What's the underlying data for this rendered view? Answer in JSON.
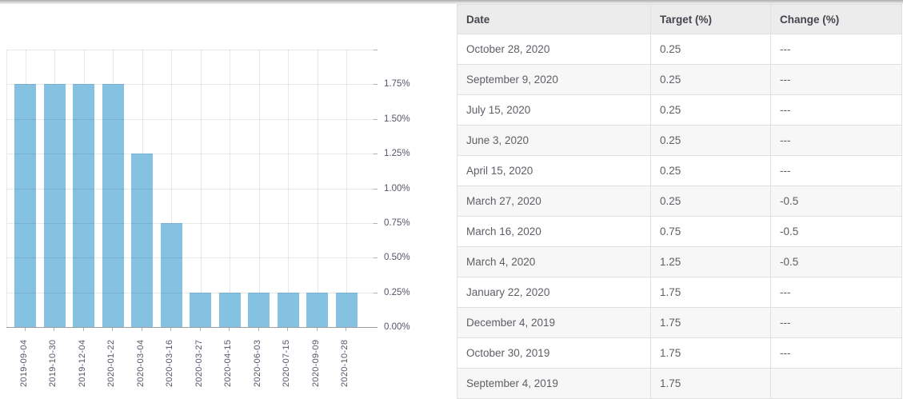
{
  "colors": {
    "bar": "#85c1e1",
    "grid": "#e7e7e7",
    "axis": "#9b9ba1",
    "chart_text": "#55556a",
    "table_header_bg": "#ececec",
    "table_header_text": "#45454e",
    "table_text": "#5e5e66",
    "table_border": "#e0e0e0",
    "row_alt_bg": "#f7f7f7"
  },
  "chart_data": {
    "type": "bar",
    "title": "",
    "xlabel": "",
    "ylabel": "",
    "categories": [
      "2019-09-04",
      "2019-10-30",
      "2019-12-04",
      "2020-01-22",
      "2020-03-04",
      "2020-03-16",
      "2020-03-27",
      "2020-04-15",
      "2020-06-03",
      "2020-07-15",
      "2020-09-09",
      "2020-10-28"
    ],
    "values": [
      1.75,
      1.75,
      1.75,
      1.75,
      1.25,
      0.75,
      0.25,
      0.25,
      0.25,
      0.25,
      0.25,
      0.25
    ],
    "ylim": [
      0,
      2.0
    ],
    "ytick_values": [
      0,
      0.25,
      0.5,
      0.75,
      1.0,
      1.25,
      1.5,
      1.75
    ],
    "ytick_labels": [
      "0.00%",
      "0.25%",
      "0.50%",
      "0.75%",
      "1.00%",
      "1.25%",
      "1.50%",
      "1.75%"
    ],
    "yaxis_side": "right",
    "grid": true,
    "legend": false
  },
  "table": {
    "headers": [
      "Date",
      "Target (%)",
      "Change (%)"
    ],
    "rows": [
      [
        "October 28, 2020",
        "0.25",
        "---"
      ],
      [
        "September 9, 2020",
        "0.25",
        "---"
      ],
      [
        "July 15, 2020",
        "0.25",
        "---"
      ],
      [
        "June 3, 2020",
        "0.25",
        "---"
      ],
      [
        "April 15, 2020",
        "0.25",
        "---"
      ],
      [
        "March 27, 2020",
        "0.25",
        "-0.5"
      ],
      [
        "March 16, 2020",
        "0.75",
        "-0.5"
      ],
      [
        "March 4, 2020",
        "1.25",
        "-0.5"
      ],
      [
        "January 22, 2020",
        "1.75",
        "---"
      ],
      [
        "December 4, 2019",
        "1.75",
        "---"
      ],
      [
        "October 30, 2019",
        "1.75",
        "---"
      ],
      [
        "September 4, 2019",
        "1.75",
        ""
      ]
    ]
  }
}
